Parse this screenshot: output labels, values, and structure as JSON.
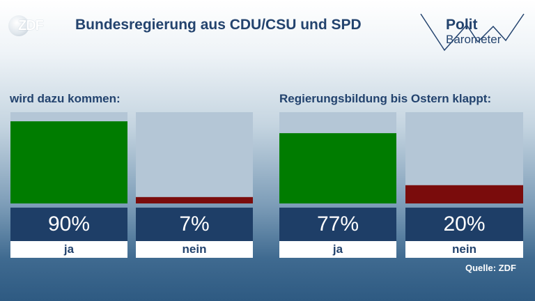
{
  "header": {
    "logo": "ZDF",
    "title": "Bundesregierung aus CDU/CSU und SPD",
    "brand_line1": "Polit",
    "brand_line2": "Barometer"
  },
  "colors": {
    "ja": "#007c00",
    "nein": "#7a0c0c",
    "track": "#b4c6d6",
    "pct_box": "#1e3e67",
    "title": "#23436e"
  },
  "source": "Quelle: ZDF",
  "chart_data": [
    {
      "type": "bar",
      "title": "wird dazu kommen:",
      "categories": [
        "ja",
        "nein"
      ],
      "values": [
        90,
        7
      ],
      "value_labels": [
        "90%",
        "7%"
      ],
      "ylim": [
        0,
        100
      ]
    },
    {
      "type": "bar",
      "title": "Regierungsbildung bis Ostern klappt:",
      "categories": [
        "ja",
        "nein"
      ],
      "values": [
        77,
        20
      ],
      "value_labels": [
        "77%",
        "20%"
      ],
      "ylim": [
        0,
        100
      ]
    }
  ]
}
